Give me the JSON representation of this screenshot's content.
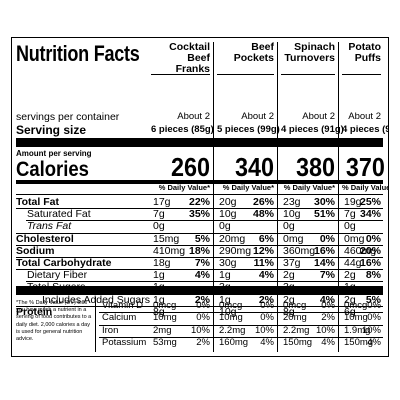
{
  "title": "Nutrition Facts",
  "servings_label": "servings per container",
  "serving_size_label": "Serving size",
  "amount_per_serving": "Amount per serving",
  "calories_label": "Calories",
  "dv_header": "% Daily Value*",
  "footnote": "*The % Daily Value (DV) tells you how much a nutrient in a serving of food contributes to a daily diet. 2,000 calories a day is used for general nutrition advice.",
  "products": [
    {
      "name": "Cocktail Beef Franks",
      "servings": "About 2",
      "serving_size": "6 pieces (85g)",
      "calories": "260"
    },
    {
      "name": "Beef Pockets",
      "servings": "About 2",
      "serving_size": "5 pieces (99g)",
      "calories": "340"
    },
    {
      "name": "Spinach Turnovers",
      "servings": "About 2",
      "serving_size": "4 pieces (91g)",
      "calories": "380"
    },
    {
      "name": "Potato Puffs",
      "servings": "About 2",
      "serving_size": "4 pieces (91g)",
      "calories": "370"
    }
  ],
  "nutrients": [
    {
      "label": "Total Fat",
      "values": [
        [
          "17g",
          "22%"
        ],
        [
          "20g",
          "26%"
        ],
        [
          "23g",
          "30%"
        ],
        [
          "19g",
          "25%"
        ]
      ]
    },
    {
      "label": "Saturated Fat",
      "values": [
        [
          "7g",
          "35%"
        ],
        [
          "10g",
          "48%"
        ],
        [
          "10g",
          "51%"
        ],
        [
          "7g",
          "34%"
        ]
      ]
    },
    {
      "label": "Trans Fat",
      "values": [
        [
          "0g",
          ""
        ],
        [
          "0g",
          ""
        ],
        [
          "0g",
          ""
        ],
        [
          "0g",
          ""
        ]
      ]
    },
    {
      "label": "Cholesterol",
      "values": [
        [
          "15mg",
          "5%"
        ],
        [
          "20mg",
          "6%"
        ],
        [
          "0mg",
          "0%"
        ],
        [
          "0mg",
          "0%"
        ]
      ]
    },
    {
      "label": "Sodium",
      "values": [
        [
          "410mg",
          "18%"
        ],
        [
          "290mg",
          "12%"
        ],
        [
          "360mg",
          "16%"
        ],
        [
          "460mg",
          "20%"
        ]
      ]
    },
    {
      "label": "Total Carbohydrate",
      "values": [
        [
          "18g",
          "7%"
        ],
        [
          "30g",
          "11%"
        ],
        [
          "37g",
          "14%"
        ],
        [
          "44g",
          "16%"
        ]
      ]
    },
    {
      "label": "Dietary Fiber",
      "values": [
        [
          "1g",
          "4%"
        ],
        [
          "1g",
          "4%"
        ],
        [
          "2g",
          "7%"
        ],
        [
          "2g",
          "8%"
        ]
      ]
    },
    {
      "label": "Total Sugars",
      "values": [
        [
          "1g",
          ""
        ],
        [
          "3g",
          ""
        ],
        [
          "3g",
          ""
        ],
        [
          "1g",
          ""
        ]
      ]
    },
    {
      "label": "Includes Added Sugars",
      "values": [
        [
          "1g",
          "2%"
        ],
        [
          "1g",
          "2%"
        ],
        [
          "2g",
          "4%"
        ],
        [
          "2g",
          "5%"
        ]
      ]
    },
    {
      "label": "Protein",
      "values": [
        [
          "8g",
          ""
        ],
        [
          "10g",
          ""
        ],
        [
          "8g",
          ""
        ],
        [
          "6g",
          ""
        ]
      ]
    }
  ],
  "vitamins": [
    {
      "label": "Vitamin D",
      "values": [
        [
          "0mcg",
          "0%"
        ],
        [
          "0mcg",
          "0%"
        ],
        [
          "0mcg",
          "0%"
        ],
        [
          "0mcg",
          "0%"
        ]
      ]
    },
    {
      "label": "Calcium",
      "values": [
        [
          "10mg",
          "0%"
        ],
        [
          "10mg",
          "0%"
        ],
        [
          "20mg",
          "2%"
        ],
        [
          "10mg",
          "0%"
        ]
      ]
    },
    {
      "label": "Iron",
      "values": [
        [
          "2mg",
          "10%"
        ],
        [
          "2.2mg",
          "10%"
        ],
        [
          "2.2mg",
          "10%"
        ],
        [
          "1.9mg",
          "10%"
        ]
      ]
    },
    {
      "label": "Potassium",
      "values": [
        [
          "53mg",
          "2%"
        ],
        [
          "160mg",
          "4%"
        ],
        [
          "150mg",
          "4%"
        ],
        [
          "150mg",
          "4%"
        ]
      ]
    }
  ]
}
